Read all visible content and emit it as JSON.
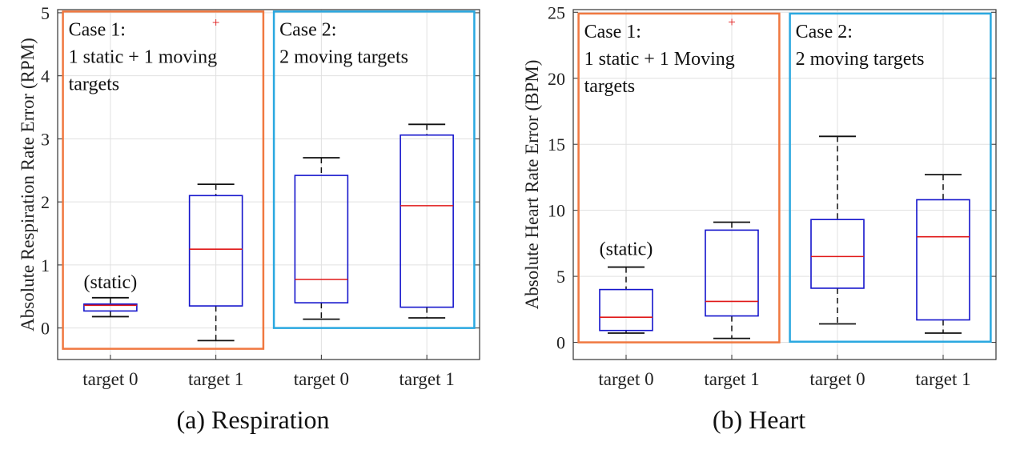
{
  "chart_data": [
    {
      "type": "box",
      "caption": "(a) Respiration",
      "ylabel": "Absolute Respiration Rate Error (RPM)",
      "ylim": [
        -0.5,
        5.05
      ],
      "yticks": [
        "0",
        "1",
        "2",
        "3",
        "4",
        "5"
      ],
      "categories": [
        "target 0",
        "target 1",
        "target 0",
        "target 1"
      ],
      "grid": true,
      "boxes": [
        {
          "min": 0.18,
          "q1": 0.27,
          "median": 0.36,
          "q3": 0.38,
          "max": 0.48,
          "outliers": []
        },
        {
          "min": -0.2,
          "q1": 0.35,
          "median": 1.25,
          "q3": 2.1,
          "max": 2.28,
          "outliers": [
            4.85
          ]
        },
        {
          "min": 0.14,
          "q1": 0.4,
          "median": 0.77,
          "q3": 2.42,
          "max": 2.7,
          "outliers": []
        },
        {
          "min": 0.16,
          "q1": 0.33,
          "median": 1.94,
          "q3": 3.06,
          "max": 3.23,
          "outliers": []
        }
      ],
      "groups": [
        {
          "title": "Case 1:",
          "lines": [
            "1 static + 1 moving",
            "targets"
          ],
          "color": "#f07840",
          "from": 0,
          "to": 1,
          "ymin": -0.33,
          "ymax": 5.02
        },
        {
          "title": "Case 2:",
          "lines": [
            "2 moving targets"
          ],
          "color": "#2aa8e0",
          "from": 2,
          "to": 3,
          "ymin": 0.0,
          "ymax": 5.02
        }
      ],
      "annotations": [
        {
          "text": "(static)",
          "box": 0,
          "y": 0.63
        }
      ]
    },
    {
      "type": "box",
      "caption": "(b) Heart",
      "ylabel": "Absolute Heart Rate Error (BPM)",
      "ylim": [
        -1.3,
        25.2
      ],
      "yticks": [
        "0",
        "5",
        "10",
        "15",
        "20",
        "25"
      ],
      "categories": [
        "target 0",
        "target 1",
        "target 0",
        "target 1"
      ],
      "grid": true,
      "boxes": [
        {
          "min": 0.7,
          "q1": 0.9,
          "median": 1.9,
          "q3": 4.0,
          "max": 5.7,
          "outliers": []
        },
        {
          "min": 0.3,
          "q1": 2.0,
          "median": 3.1,
          "q3": 8.5,
          "max": 9.1,
          "outliers": [
            24.3
          ]
        },
        {
          "min": 1.4,
          "q1": 4.1,
          "median": 6.5,
          "q3": 9.3,
          "max": 15.6,
          "outliers": []
        },
        {
          "min": 0.7,
          "q1": 1.7,
          "median": 8.0,
          "q3": 10.8,
          "max": 12.7,
          "outliers": []
        }
      ],
      "groups": [
        {
          "title": "Case 1:",
          "lines": [
            "1 static + 1 Moving",
            "targets"
          ],
          "color": "#f07840",
          "from": 0,
          "to": 1,
          "ymin": 0.0,
          "ymax": 24.9
        },
        {
          "title": "Case 2:",
          "lines": [
            "2 moving targets"
          ],
          "color": "#2aa8e0",
          "from": 2,
          "to": 3,
          "ymin": 0.05,
          "ymax": 24.9
        }
      ],
      "annotations": [
        {
          "text": "(static)",
          "box": 0,
          "y": 6.6
        }
      ]
    }
  ],
  "colors": {
    "box": "#1414cc",
    "median": "#e01818",
    "whisker": "#111111",
    "outlier": "#e01818",
    "grid": "#e0e0e0"
  }
}
